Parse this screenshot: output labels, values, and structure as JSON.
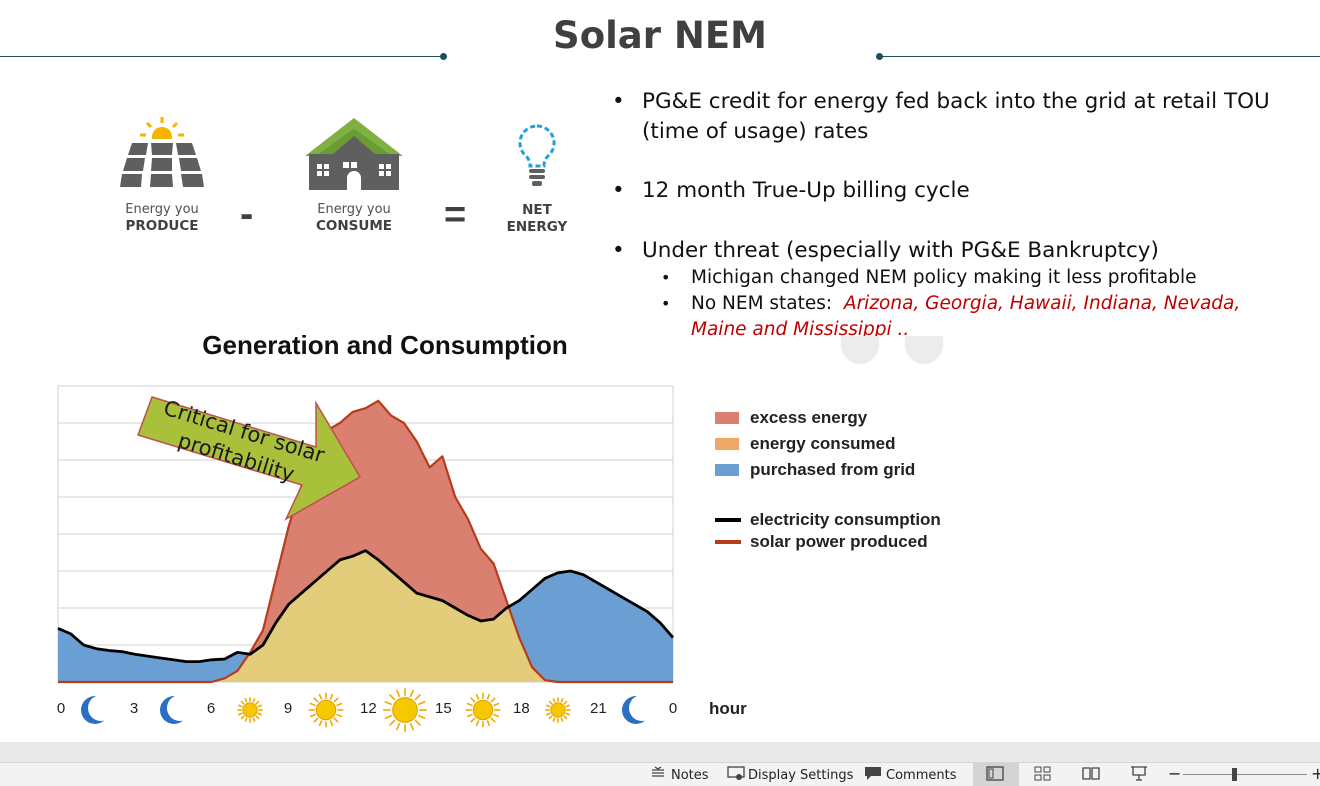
{
  "slide": {
    "title": "Solar NEM",
    "equation": {
      "produce_top": "Energy you",
      "produce_bottom": "PRODUCE",
      "minus": "-",
      "consume_top": "Energy you",
      "consume_bottom": "CONSUME",
      "equals": "=",
      "net_top": "NET",
      "net_bottom": "ENERGY"
    },
    "bullets": [
      {
        "line1": "PG&E credit for energy fed back into the grid at retail TOU",
        "line2": "(time of usage) rates"
      },
      {
        "line1": "12 month True-Up billing cycle"
      },
      {
        "line1": "Under threat (especially with PG&E Bankruptcy)"
      }
    ],
    "sub_bullets": {
      "michigan": "Michigan changed NEM policy making it less profitable",
      "no_nem_prefix": "No NEM states:",
      "no_nem_states_1": "Arizona, Georgia, Hawaii, Indiana, Nevada,",
      "no_nem_states_2": "Maine and Mississippi .."
    },
    "callout": {
      "line1": "Critical for solar",
      "line2": "profitability"
    }
  },
  "chart_data": {
    "type": "area",
    "title": "Generation and Consumption",
    "xlabel": "hour",
    "x_ticks": [
      "0",
      "3",
      "6",
      "9",
      "12",
      "15",
      "18",
      "21",
      "0"
    ],
    "x_icons": [
      "moon",
      "moon",
      "sun",
      "sun",
      "sun",
      "sun",
      "sun",
      "moon"
    ],
    "xlim": [
      0,
      24
    ],
    "ylim": [
      0,
      8
    ],
    "grid": true,
    "legend_position": "right",
    "legend": [
      {
        "label": "excess energy",
        "color": "#d98070",
        "kind": "fill"
      },
      {
        "label": "energy consumed",
        "color": "#f0a868",
        "kind": "fill"
      },
      {
        "label": "purchased from grid",
        "color": "#6b9fd4",
        "kind": "fill"
      },
      {
        "label": "electricity consumption",
        "color": "#000000",
        "kind": "line"
      },
      {
        "label": "solar power produced",
        "color": "#b83c1c",
        "kind": "line"
      }
    ],
    "series": [
      {
        "name": "electricity consumption",
        "x": [
          0,
          0.5,
          1,
          1.5,
          2,
          2.5,
          3,
          3.5,
          4,
          4.5,
          5,
          5.5,
          6,
          6.5,
          7,
          7.5,
          8,
          8.5,
          9,
          9.5,
          10,
          10.5,
          11,
          11.5,
          12,
          12.5,
          13,
          13.5,
          14,
          14.5,
          15,
          15.5,
          16,
          16.5,
          17,
          17.5,
          18,
          18.5,
          19,
          19.5,
          20,
          20.5,
          21,
          21.5,
          22,
          22.5,
          23,
          23.5,
          24
        ],
        "values": [
          1.45,
          1.3,
          1.0,
          0.9,
          0.85,
          0.82,
          0.75,
          0.7,
          0.65,
          0.6,
          0.55,
          0.55,
          0.6,
          0.62,
          0.8,
          0.75,
          1.0,
          1.6,
          2.1,
          2.4,
          2.7,
          3.0,
          3.3,
          3.4,
          3.55,
          3.3,
          3.0,
          2.7,
          2.4,
          2.3,
          2.2,
          2.0,
          1.8,
          1.65,
          1.7,
          2.0,
          2.2,
          2.5,
          2.8,
          2.95,
          3.0,
          2.9,
          2.7,
          2.5,
          2.3,
          2.1,
          1.9,
          1.6,
          1.2
        ]
      },
      {
        "name": "solar power produced",
        "x": [
          0,
          6,
          6.5,
          7,
          7.5,
          8,
          8.5,
          9,
          9.5,
          10,
          10.5,
          11,
          11.5,
          12,
          12.5,
          13,
          13.5,
          14,
          14.5,
          15,
          15.5,
          16,
          16.5,
          17,
          17.5,
          18,
          18.5,
          19,
          19.5,
          24
        ],
        "values": [
          0,
          0,
          0.1,
          0.3,
          0.8,
          1.4,
          2.8,
          4.2,
          5.3,
          6.2,
          6.8,
          7.0,
          7.3,
          7.4,
          7.6,
          7.2,
          7.0,
          6.5,
          5.8,
          6.1,
          5.0,
          4.4,
          3.6,
          3.2,
          2.2,
          1.2,
          0.4,
          0.05,
          0,
          0
        ]
      }
    ]
  },
  "status_bar": {
    "notes": "Notes",
    "display_settings": "Display Settings",
    "comments": "Comments"
  },
  "colors": {
    "accent": "#1f4e5f",
    "excess": "#d98070",
    "consumed": "#e3cd7a",
    "grid_purchase": "#6b9fd4",
    "solar_line": "#b83c1c",
    "callout": "#a8c03a",
    "callout_border": "#c0504d",
    "red_text": "#c00000"
  }
}
